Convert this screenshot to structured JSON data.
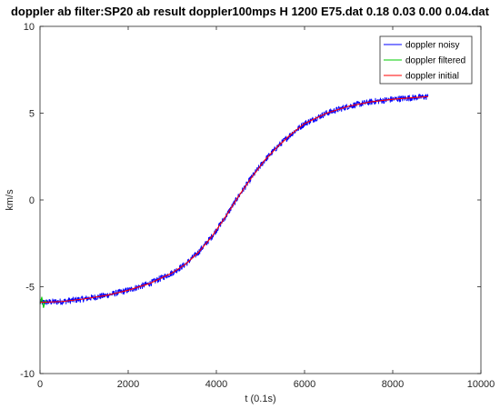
{
  "chart_data": {
    "type": "line",
    "title": "doppler ab filter:SP20 ab result doppler100mps H 1200 E75.dat 0.18 0.03 0.00 0.04.dat",
    "xlabel": "t (0.1s)",
    "ylabel": "km/s",
    "xlim": [
      0,
      10000
    ],
    "ylim": [
      -10,
      10
    ],
    "xticks": [
      0,
      2000,
      4000,
      6000,
      8000,
      10000
    ],
    "yticks": [
      -10,
      -5,
      0,
      5,
      10
    ],
    "grid": false,
    "legend_position": "top-right",
    "series": [
      {
        "name": "doppler noisy",
        "color": "#0000ff",
        "noise_amplitude": 0.18,
        "x": [
          0,
          500,
          1000,
          1500,
          2000,
          2500,
          3000,
          3300,
          3600,
          3900,
          4200,
          4500,
          4800,
          5100,
          5400,
          5700,
          6000,
          6500,
          7000,
          7500,
          8000,
          8500,
          8800
        ],
        "y": [
          -5.9,
          -5.85,
          -5.7,
          -5.5,
          -5.2,
          -4.8,
          -4.2,
          -3.7,
          -3.0,
          -2.1,
          -1.0,
          0.2,
          1.3,
          2.3,
          3.1,
          3.8,
          4.4,
          5.0,
          5.4,
          5.65,
          5.8,
          5.9,
          5.95
        ]
      },
      {
        "name": "doppler filtered",
        "color": "#00cc00",
        "x": [
          0,
          40,
          80,
          120,
          160
        ],
        "y": [
          -6.0,
          -5.6,
          -6.2,
          -5.8,
          -5.9
        ]
      },
      {
        "name": "doppler initial",
        "color": "#ff0000",
        "x": [
          0,
          500,
          1000,
          1500,
          2000,
          2500,
          3000,
          3300,
          3600,
          3900,
          4200,
          4500,
          4800,
          5100,
          5400,
          5700,
          6000,
          6500,
          7000,
          7500,
          8000,
          8500,
          8800
        ],
        "y": [
          -5.9,
          -5.85,
          -5.7,
          -5.5,
          -5.2,
          -4.8,
          -4.2,
          -3.7,
          -3.0,
          -2.1,
          -1.0,
          0.2,
          1.3,
          2.3,
          3.1,
          3.8,
          4.4,
          5.0,
          5.4,
          5.65,
          5.8,
          5.9,
          5.95
        ]
      }
    ]
  }
}
